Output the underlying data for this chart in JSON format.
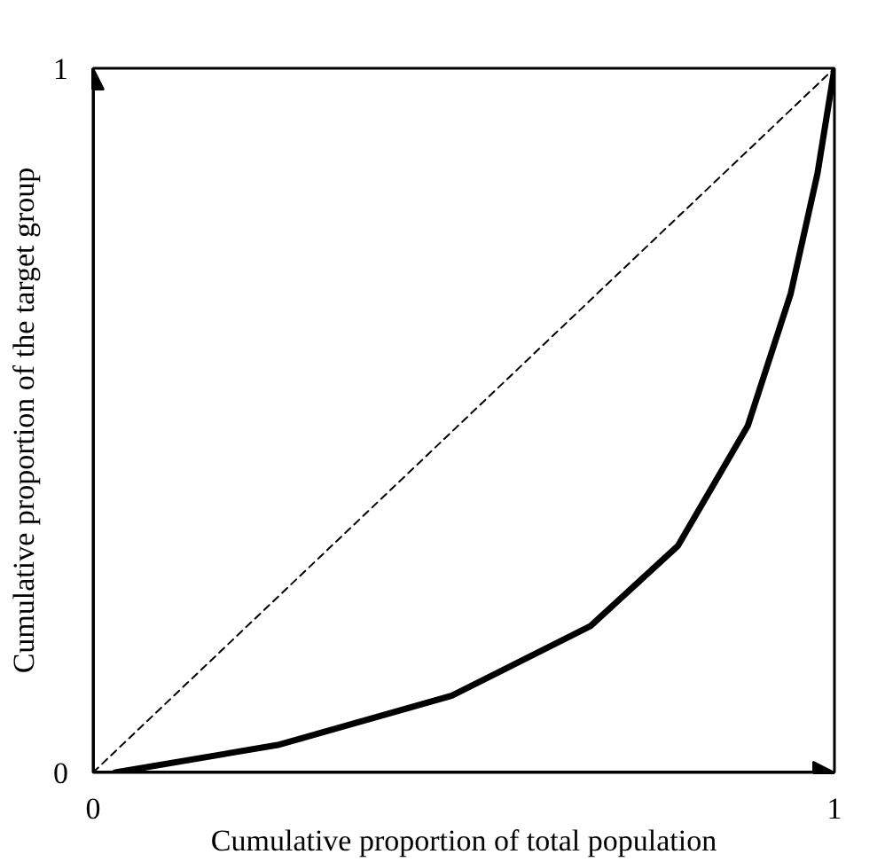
{
  "chart_data": {
    "type": "line",
    "xlabel": "Cumulative proportion of total population",
    "ylabel": "Cumulative proportion of the target group",
    "xlim": [
      0,
      1
    ],
    "ylim": [
      0,
      1
    ],
    "xticks": [
      0,
      1
    ],
    "yticks": [
      0,
      1
    ],
    "series": [
      {
        "color": "#000000",
        "line_style": "dashed",
        "x": [
          0,
          1
        ],
        "values": [
          0,
          1
        ]
      },
      {
        "color": "#000000",
        "line_style": "solid",
        "x": [
          0.03,
          0.249,
          0.484,
          0.671,
          0.789,
          0.883,
          0.941,
          0.977,
          1
        ],
        "values": [
          0,
          0.039,
          0.109,
          0.208,
          0.322,
          0.492,
          0.68,
          0.85,
          1
        ]
      }
    ]
  }
}
